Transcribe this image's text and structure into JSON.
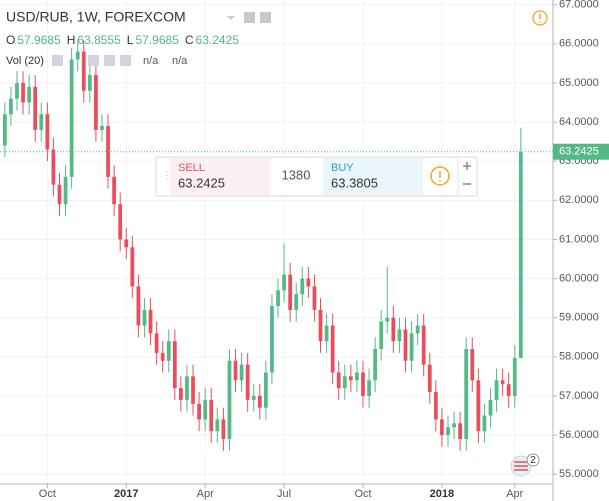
{
  "chart_data": {
    "type": "candlestick",
    "title": "USD/RUB, 1W, FOREXCOM",
    "ohlc_labels": [
      "O",
      "H",
      "L",
      "C"
    ],
    "ohlc_values": [
      57.9685,
      63.8555,
      57.9685,
      63.2425
    ],
    "indicator": "Vol (20)",
    "indicator_values": [
      "n/a",
      "n/a"
    ],
    "trade": {
      "sell_label": "SELL",
      "sell_price": 63.2425,
      "spread": 1380,
      "buy_label": "BUY",
      "buy_price": 63.3805
    },
    "last_price": 63.2425,
    "alert_count": 2,
    "up_color": "#53b987",
    "down_color": "#eb4d5c",
    "grid": true,
    "xlim": [
      -0.8,
      90.3
    ],
    "xticks": [
      {
        "value": 7,
        "label": "Oct"
      },
      {
        "value": 20,
        "label": "2017"
      },
      {
        "value": 33,
        "label": "Apr"
      },
      {
        "value": 46,
        "label": "Jul"
      },
      {
        "value": 59,
        "label": "Oct"
      },
      {
        "value": 72,
        "label": "2018"
      },
      {
        "value": 84,
        "label": "Apr"
      }
    ],
    "ylim": [
      54.75,
      67.12
    ],
    "yticks": [
      {
        "value": 55,
        "label": "55.0000"
      },
      {
        "value": 56,
        "label": "56.0000"
      },
      {
        "value": 57,
        "label": "57.0000"
      },
      {
        "value": 58,
        "label": "58.0000"
      },
      {
        "value": 59,
        "label": "59.0000"
      },
      {
        "value": 60,
        "label": "60.0000"
      },
      {
        "value": 61,
        "label": "61.0000"
      },
      {
        "value": 62,
        "label": "62.0000"
      },
      {
        "value": 63,
        "label": "63.0000"
      },
      {
        "value": 64,
        "label": "64.0000"
      },
      {
        "value": 65,
        "label": "65.0000"
      },
      {
        "value": 66,
        "label": "66.0000"
      },
      {
        "value": 67,
        "label": "67.0000"
      }
    ],
    "open": [
      63.4,
      64.2,
      64.6,
      65.0,
      64.5,
      64.9,
      63.8,
      64.2,
      63.3,
      62.4,
      61.9,
      62.6,
      65.6,
      65.8,
      64.8,
      65.2,
      63.8,
      63.9,
      62.6,
      61.9,
      61.0,
      60.8,
      59.8,
      58.8,
      59.2,
      58.6,
      58.1,
      57.9,
      58.4,
      57.2,
      56.9,
      57.5,
      56.8,
      56.4,
      56.9,
      56.1,
      56.4,
      55.9,
      57.9,
      57.4,
      57.8,
      56.9,
      57.0,
      56.7,
      57.6,
      59.3,
      59.7,
      60.1,
      59.2,
      59.6,
      60.0,
      59.8,
      59.2,
      58.4,
      58.8,
      57.6,
      57.2,
      57.5,
      57.4,
      57.6,
      57.0,
      57.4,
      58.2,
      58.9,
      59.0,
      58.4,
      58.7,
      57.9,
      58.6,
      58.8,
      57.8,
      57.1,
      56.4,
      56.0,
      56.2,
      56.3,
      55.9,
      58.2,
      57.4,
      56.1,
      56.5,
      56.9,
      57.4,
      57.3,
      57.0,
      57.9685
    ],
    "high": [
      64.5,
      64.9,
      65.3,
      65.3,
      65.2,
      65.2,
      64.5,
      64.5,
      63.6,
      62.7,
      62.9,
      65.9,
      66.1,
      66.1,
      65.5,
      65.5,
      64.2,
      64.2,
      62.9,
      62.2,
      61.3,
      61.1,
      60.1,
      59.5,
      59.5,
      58.9,
      58.4,
      58.7,
      58.7,
      57.5,
      57.8,
      57.8,
      57.1,
      57.2,
      57.2,
      56.7,
      56.7,
      58.2,
      58.2,
      58.1,
      58.1,
      57.3,
      57.3,
      57.9,
      59.6,
      60.0,
      60.9,
      60.4,
      59.9,
      60.3,
      60.3,
      60.1,
      59.5,
      59.1,
      59.1,
      57.9,
      57.8,
      57.8,
      57.9,
      57.9,
      57.7,
      58.5,
      59.2,
      60.3,
      59.3,
      59.0,
      59.0,
      58.9,
      59.1,
      59.1,
      58.1,
      57.4,
      56.7,
      56.5,
      56.6,
      56.6,
      58.5,
      58.5,
      57.7,
      56.8,
      57.2,
      57.7,
      57.7,
      57.6,
      58.3,
      63.8555
    ],
    "low": [
      63.1,
      63.9,
      64.3,
      64.2,
      64.2,
      63.5,
      63.5,
      63.0,
      62.1,
      61.6,
      61.6,
      62.3,
      65.3,
      64.5,
      64.5,
      63.5,
      63.5,
      62.3,
      61.6,
      60.7,
      60.5,
      59.5,
      58.5,
      58.5,
      58.3,
      57.8,
      57.6,
      57.6,
      56.9,
      56.6,
      56.6,
      56.5,
      56.1,
      56.1,
      55.8,
      55.8,
      55.6,
      55.6,
      57.1,
      57.1,
      56.6,
      56.6,
      56.4,
      56.4,
      57.3,
      59.0,
      59.4,
      58.9,
      58.9,
      59.3,
      59.5,
      58.9,
      58.1,
      58.1,
      57.3,
      56.9,
      56.9,
      57.1,
      57.1,
      56.7,
      56.7,
      57.1,
      57.9,
      58.6,
      58.1,
      58.1,
      57.6,
      57.6,
      58.3,
      57.5,
      56.8,
      56.1,
      55.7,
      55.7,
      55.9,
      55.6,
      55.6,
      57.1,
      55.8,
      55.8,
      56.2,
      56.6,
      57.0,
      56.7,
      56.7,
      57.9685
    ],
    "close": [
      64.2,
      64.6,
      65.0,
      64.5,
      64.9,
      63.8,
      64.2,
      63.3,
      62.4,
      61.9,
      62.6,
      65.6,
      65.8,
      64.8,
      65.2,
      63.8,
      63.9,
      62.6,
      61.9,
      61.0,
      60.8,
      59.8,
      58.8,
      59.2,
      58.6,
      58.1,
      57.9,
      58.4,
      57.2,
      56.9,
      57.5,
      56.8,
      56.4,
      56.9,
      56.1,
      56.4,
      55.9,
      57.9,
      57.4,
      57.8,
      56.9,
      57.0,
      56.7,
      57.6,
      59.3,
      59.7,
      60.1,
      59.2,
      59.6,
      60.0,
      59.8,
      59.2,
      58.4,
      58.8,
      57.6,
      57.2,
      57.5,
      57.4,
      57.6,
      57.0,
      57.4,
      58.2,
      58.9,
      59.0,
      58.4,
      58.7,
      57.9,
      58.6,
      58.8,
      57.8,
      57.1,
      56.4,
      56.0,
      56.2,
      56.3,
      55.9,
      58.2,
      57.4,
      56.1,
      56.5,
      56.9,
      57.4,
      57.3,
      57.0,
      57.9685,
      63.2425
    ]
  }
}
